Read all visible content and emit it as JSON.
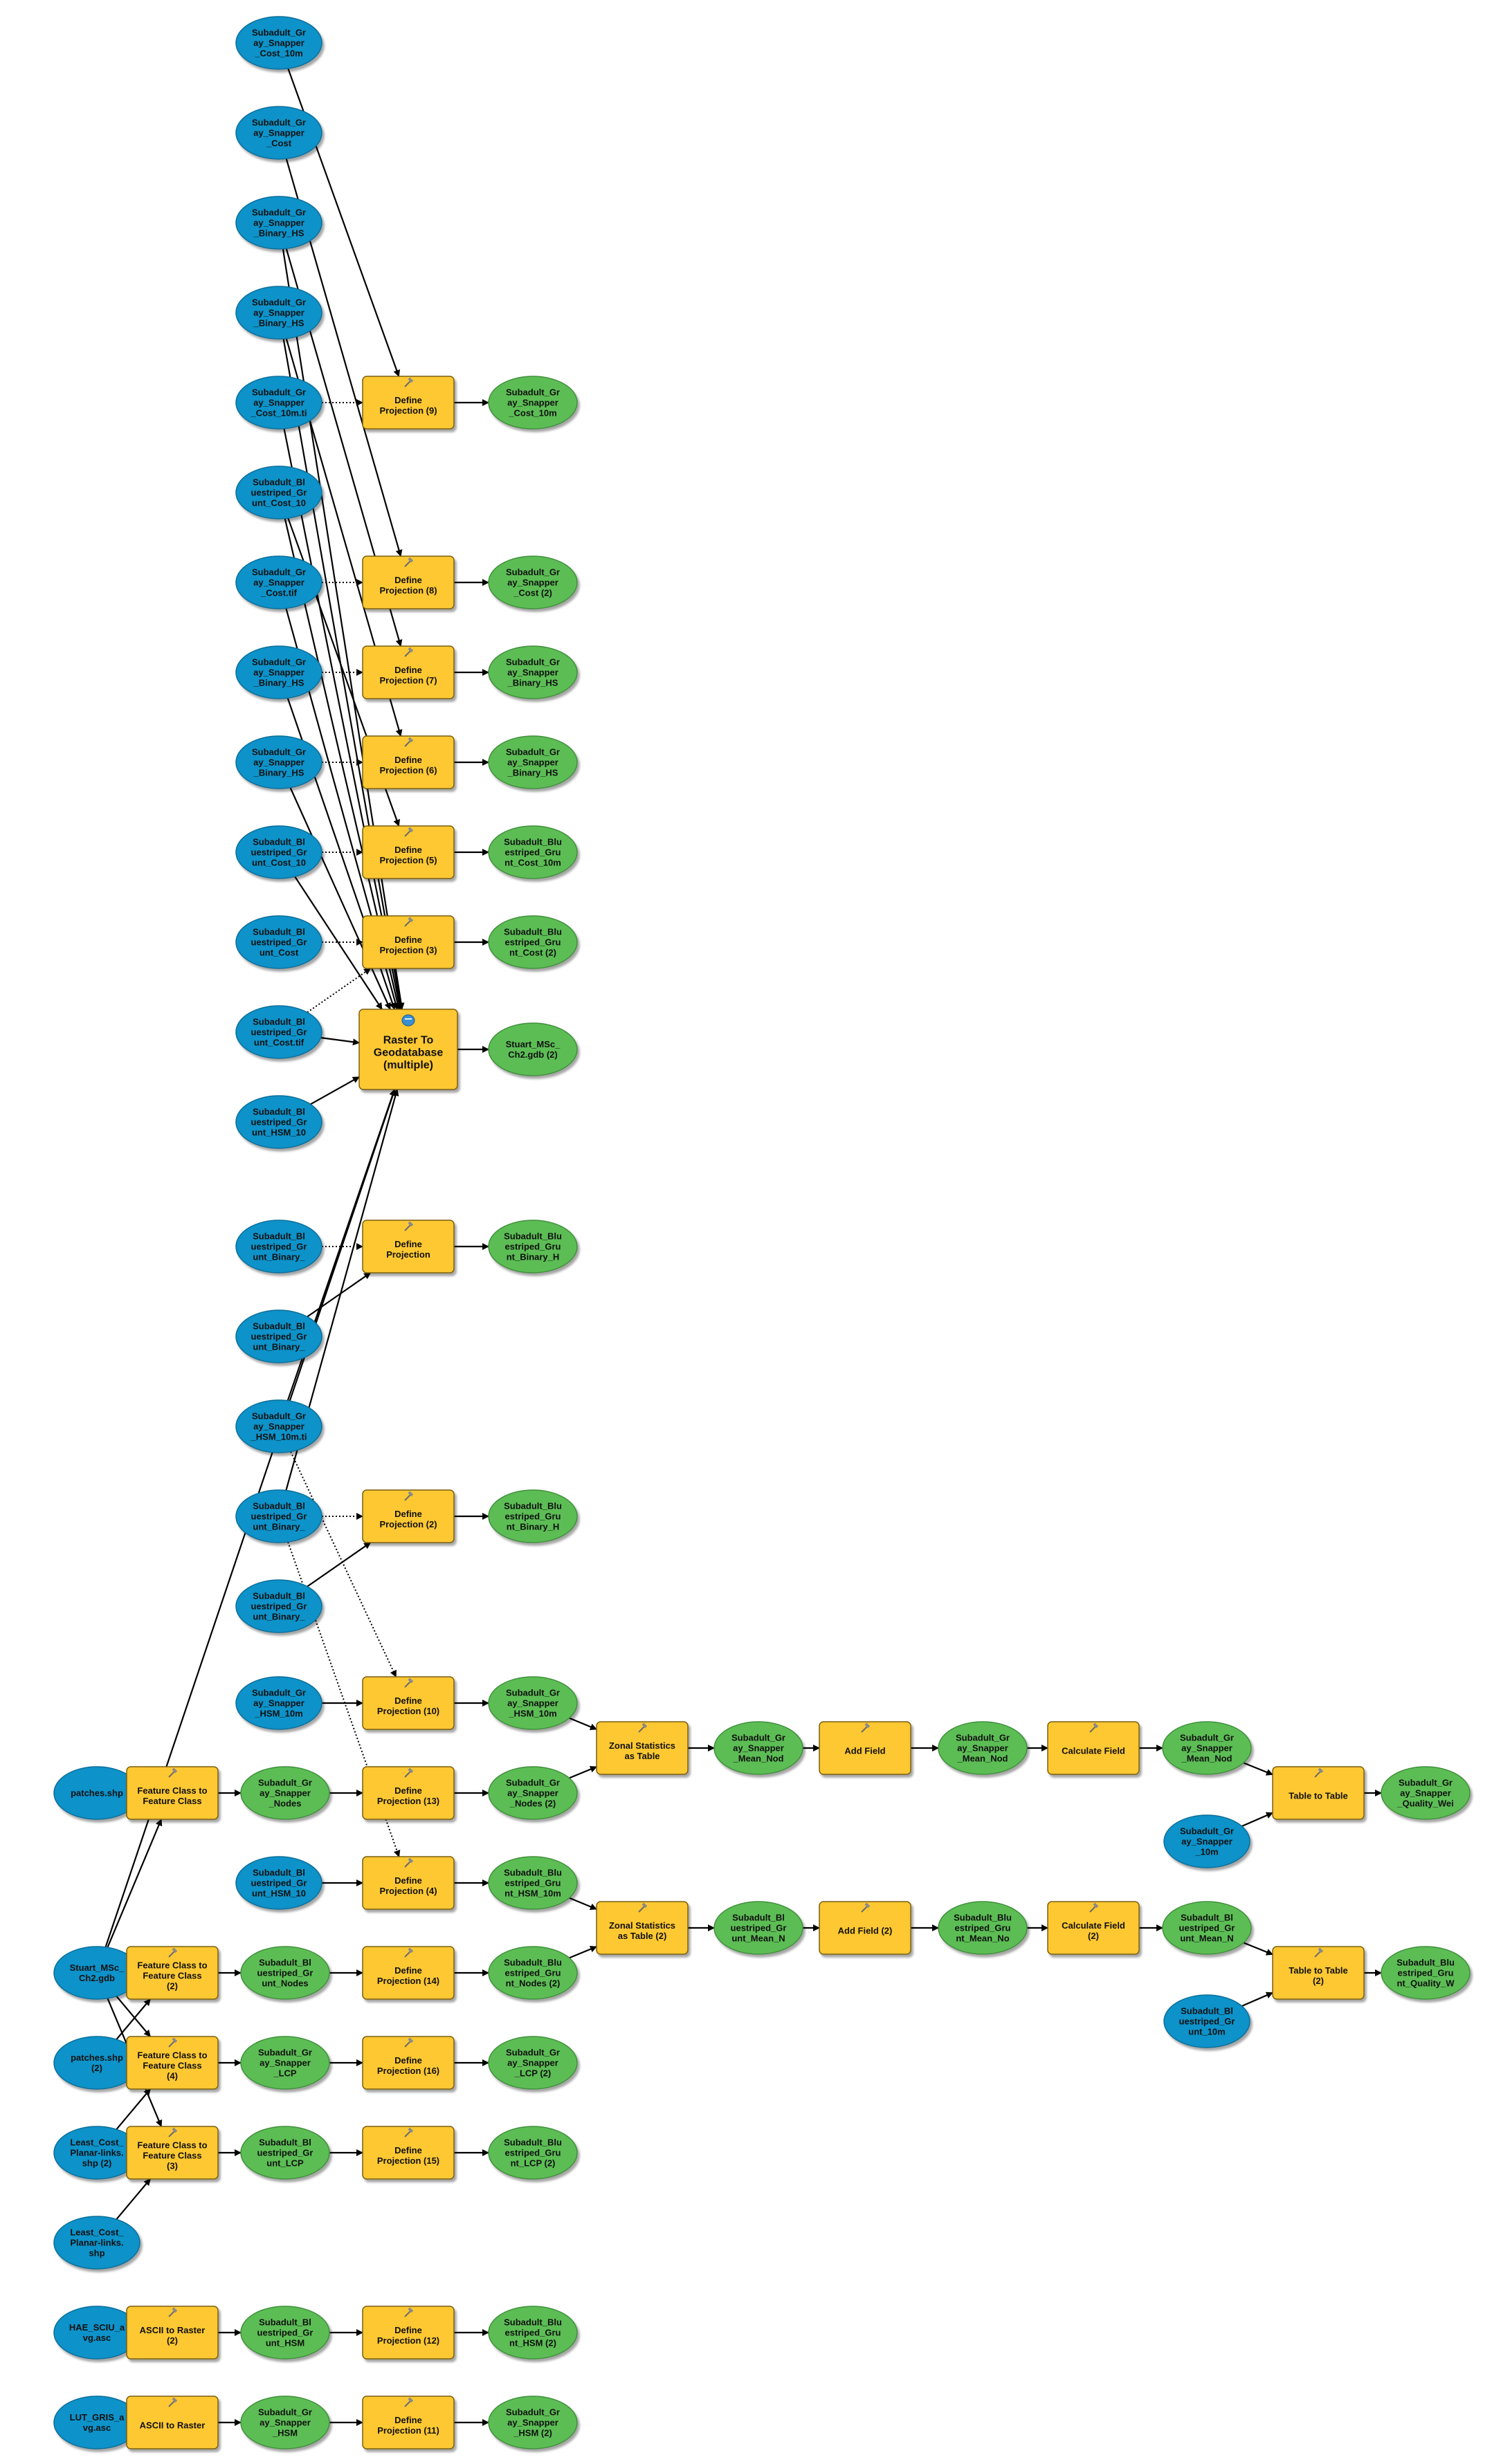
{
  "colors": {
    "data_input": "#1192c9",
    "data_output": "#5cbd55",
    "tool": "#fec830",
    "tool_stroke": "#7a5e10",
    "tool_icon": "hammer-icon",
    "tool_icon_big": "geodatabase-tool-icon"
  },
  "nodes": [
    {
      "id": "i1",
      "kind": "input",
      "label": "Subadult_Gr\nay_Snapper\n_Cost_10m"
    },
    {
      "id": "i2",
      "kind": "input",
      "label": "Subadult_Gr\nay_Snapper\n_Cost"
    },
    {
      "id": "i3",
      "kind": "input",
      "label": "Subadult_Gr\nay_Snapper\n_Binary_HS"
    },
    {
      "id": "i4",
      "kind": "input",
      "label": "Subadult_Gr\nay_Snapper\n_Binary_HS"
    },
    {
      "id": "i5",
      "kind": "input",
      "label": "Subadult_Gr\nay_Snapper\n_Cost_10m.ti"
    },
    {
      "id": "i6",
      "kind": "input",
      "label": "Subadult_Bl\nuestriped_Gr\nunt_Cost_10"
    },
    {
      "id": "i7",
      "kind": "input",
      "label": "Subadult_Gr\nay_Snapper\n_Cost.tif"
    },
    {
      "id": "i8",
      "kind": "input",
      "label": "Subadult_Gr\nay_Snapper\n_Binary_HS"
    },
    {
      "id": "i9",
      "kind": "input",
      "label": "Subadult_Gr\nay_Snapper\n_Binary_HS"
    },
    {
      "id": "i10",
      "kind": "input",
      "label": "Subadult_Bl\nuestriped_Gr\nunt_Cost_10"
    },
    {
      "id": "i11",
      "kind": "input",
      "label": "Subadult_Bl\nuestriped_Gr\nunt_Cost"
    },
    {
      "id": "i12",
      "kind": "input",
      "label": "Subadult_Bl\nuestriped_Gr\nunt_Cost.tif"
    },
    {
      "id": "i13",
      "kind": "input",
      "label": "Subadult_Bl\nuestriped_Gr\nunt_HSM_10"
    },
    {
      "id": "i14",
      "kind": "input",
      "label": "Subadult_Bl\nuestriped_Gr\nunt_Binary_"
    },
    {
      "id": "i15",
      "kind": "input",
      "label": "Subadult_Bl\nuestriped_Gr\nunt_Binary_"
    },
    {
      "id": "i16",
      "kind": "input",
      "label": "Subadult_Gr\nay_Snapper\n_HSM_10m.ti"
    },
    {
      "id": "i17",
      "kind": "input",
      "label": "Subadult_Bl\nuestriped_Gr\nunt_Binary_"
    },
    {
      "id": "i18",
      "kind": "input",
      "label": "Subadult_Bl\nuestriped_Gr\nunt_Binary_"
    },
    {
      "id": "i19",
      "kind": "input",
      "label": "Subadult_Gr\nay_Snapper\n_HSM_10m"
    },
    {
      "id": "i20",
      "kind": "input",
      "label": "patches.shp"
    },
    {
      "id": "i21",
      "kind": "input",
      "label": "Subadult_Bl\nuestriped_Gr\nunt_HSM_10"
    },
    {
      "id": "i22",
      "kind": "input",
      "label": "Stuart_MSc_\nCh2.gdb"
    },
    {
      "id": "i23",
      "kind": "input",
      "label": "patches.shp\n(2)"
    },
    {
      "id": "i24",
      "kind": "input",
      "label": "Least_Cost_\nPlanar-links.\nshp (2)"
    },
    {
      "id": "i25",
      "kind": "input",
      "label": "Least_Cost_\nPlanar-links.\nshp"
    },
    {
      "id": "i26",
      "kind": "input",
      "label": "HAE_SCIU_a\nvg.asc"
    },
    {
      "id": "i27",
      "kind": "input",
      "label": "LUT_GRIS_a\nvg.asc"
    },
    {
      "id": "i28",
      "kind": "input",
      "label": "Subadult_Gr\nay_Snapper\n_10m"
    },
    {
      "id": "i29",
      "kind": "input",
      "label": "Subadult_Bl\nuestriped_Gr\nunt_10m"
    },
    {
      "id": "t9",
      "kind": "tool",
      "label": "Define\nProjection (9)"
    },
    {
      "id": "t8",
      "kind": "tool",
      "label": "Define\nProjection (8)"
    },
    {
      "id": "t7",
      "kind": "tool",
      "label": "Define\nProjection (7)"
    },
    {
      "id": "t6",
      "kind": "tool",
      "label": "Define\nProjection (6)"
    },
    {
      "id": "t5",
      "kind": "tool",
      "label": "Define\nProjection (5)"
    },
    {
      "id": "t3",
      "kind": "tool",
      "label": "Define\nProjection (3)"
    },
    {
      "id": "tR",
      "kind": "tool-big",
      "label": "Raster To\nGeodatabase\n(multiple)"
    },
    {
      "id": "tDP",
      "kind": "tool",
      "label": "Define\nProjection"
    },
    {
      "id": "t2",
      "kind": "tool",
      "label": "Define\nProjection (2)"
    },
    {
      "id": "t10",
      "kind": "tool",
      "label": "Define\nProjection (10)"
    },
    {
      "id": "tFC",
      "kind": "tool",
      "label": "Feature Class to\nFeature Class"
    },
    {
      "id": "t13",
      "kind": "tool",
      "label": "Define\nProjection (13)"
    },
    {
      "id": "tZS",
      "kind": "tool",
      "label": "Zonal Statistics\nas Table"
    },
    {
      "id": "tAF",
      "kind": "tool",
      "label": "Add Field"
    },
    {
      "id": "tCF",
      "kind": "tool",
      "label": "Calculate Field"
    },
    {
      "id": "tTT",
      "kind": "tool",
      "label": "Table to Table"
    },
    {
      "id": "t4",
      "kind": "tool",
      "label": "Define\nProjection (4)"
    },
    {
      "id": "tZS2",
      "kind": "tool",
      "label": "Zonal Statistics\nas Table (2)"
    },
    {
      "id": "tAF2",
      "kind": "tool",
      "label": "Add Field (2)"
    },
    {
      "id": "tCF2",
      "kind": "tool",
      "label": "Calculate Field\n(2)"
    },
    {
      "id": "tTT2",
      "kind": "tool",
      "label": "Table to Table\n(2)"
    },
    {
      "id": "tFC2",
      "kind": "tool",
      "label": "Feature Class to\nFeature Class\n(2)"
    },
    {
      "id": "t14",
      "kind": "tool",
      "label": "Define\nProjection (14)"
    },
    {
      "id": "tFC4",
      "kind": "tool",
      "label": "Feature Class to\nFeature Class\n(4)"
    },
    {
      "id": "t16",
      "kind": "tool",
      "label": "Define\nProjection (16)"
    },
    {
      "id": "tFC3",
      "kind": "tool",
      "label": "Feature Class to\nFeature Class\n(3)"
    },
    {
      "id": "t15",
      "kind": "tool",
      "label": "Define\nProjection (15)"
    },
    {
      "id": "tA2",
      "kind": "tool",
      "label": "ASCII to Raster\n(2)"
    },
    {
      "id": "t12",
      "kind": "tool",
      "label": "Define\nProjection (12)"
    },
    {
      "id": "tA",
      "kind": "tool",
      "label": "ASCII to Raster"
    },
    {
      "id": "t11",
      "kind": "tool",
      "label": "Define\nProjection (11)"
    },
    {
      "id": "o9",
      "kind": "output",
      "label": "Subadult_Gr\nay_Snapper\n_Cost_10m"
    },
    {
      "id": "o8",
      "kind": "output",
      "label": "Subadult_Gr\nay_Snapper\n_Cost (2)"
    },
    {
      "id": "o7",
      "kind": "output",
      "label": "Subadult_Gr\nay_Snapper\n_Binary_HS"
    },
    {
      "id": "o6",
      "kind": "output",
      "label": "Subadult_Gr\nay_Snapper\n_Binary_HS"
    },
    {
      "id": "o5",
      "kind": "output",
      "label": "Subadult_Blu\nestriped_Gru\nnt_Cost_10m"
    },
    {
      "id": "o3",
      "kind": "output",
      "label": "Subadult_Blu\nestriped_Gru\nnt_Cost (2)"
    },
    {
      "id": "oR",
      "kind": "output",
      "label": "Stuart_MSc_\nCh2.gdb (2)"
    },
    {
      "id": "oDP",
      "kind": "output",
      "label": "Subadult_Blu\nestriped_Gru\nnt_Binary_H"
    },
    {
      "id": "o2",
      "kind": "output",
      "label": "Subadult_Blu\nestriped_Gru\nnt_Binary_H"
    },
    {
      "id": "o10",
      "kind": "output",
      "label": "Subadult_Gr\nay_Snapper\n_HSM_10m"
    },
    {
      "id": "oFC",
      "kind": "output",
      "label": "Subadult_Gr\nay_Snapper\n_Nodes"
    },
    {
      "id": "o13",
      "kind": "output",
      "label": "Subadult_Gr\nay_Snapper\n_Nodes (2)"
    },
    {
      "id": "oZS",
      "kind": "output",
      "label": "Subadult_Gr\nay_Snapper\n_Mean_Nod"
    },
    {
      "id": "oAF",
      "kind": "output",
      "label": "Subadult_Gr\nay_Snapper\n_Mean_Nod"
    },
    {
      "id": "oCF",
      "kind": "output",
      "label": "Subadult_Gr\nay_Snapper\n_Mean_Nod"
    },
    {
      "id": "oTT",
      "kind": "output",
      "label": "Subadult_Gr\nay_Snapper\n_Quality_Wei"
    },
    {
      "id": "o4",
      "kind": "output",
      "label": "Subadult_Blu\nestriped_Gru\nnt_HSM_10m"
    },
    {
      "id": "oZS2",
      "kind": "output",
      "label": "Subadult_Bl\nuestriped_Gr\nunt_Mean_N"
    },
    {
      "id": "oAF2",
      "kind": "output",
      "label": "Subadult_Blu\nestriped_Gru\nnt_Mean_No"
    },
    {
      "id": "oCF2",
      "kind": "output",
      "label": "Subadult_Bl\nuestriped_Gr\nunt_Mean_N"
    },
    {
      "id": "oTT2",
      "kind": "output",
      "label": "Subadult_Blu\nestriped_Gru\nnt_Quality_W"
    },
    {
      "id": "oFC2",
      "kind": "output",
      "label": "Subadult_Bl\nuestriped_Gr\nunt_Nodes"
    },
    {
      "id": "o14",
      "kind": "output",
      "label": "Subadult_Blu\nestriped_Gru\nnt_Nodes (2)"
    },
    {
      "id": "oFC4",
      "kind": "output",
      "label": "Subadult_Gr\nay_Snapper\n_LCP"
    },
    {
      "id": "o16",
      "kind": "output",
      "label": "Subadult_Gr\nay_Snapper\n_LCP (2)"
    },
    {
      "id": "oFC3",
      "kind": "output",
      "label": "Subadult_Bl\nuestriped_Gr\nunt_LCP"
    },
    {
      "id": "o15",
      "kind": "output",
      "label": "Subadult_Blu\nestriped_Gru\nnt_LCP (2)"
    },
    {
      "id": "oA2",
      "kind": "output",
      "label": "Subadult_Bl\nuestriped_Gr\nunt_HSM"
    },
    {
      "id": "o12",
      "kind": "output",
      "label": "Subadult_Blu\nestriped_Gru\nnt_HSM (2)"
    },
    {
      "id": "oA",
      "kind": "output",
      "label": "Subadult_Gr\nay_Snapper\n_HSM"
    },
    {
      "id": "o11",
      "kind": "output",
      "label": "Subadult_Gr\nay_Snapper\n_HSM (2)"
    }
  ],
  "edges": [
    {
      "from": "i1",
      "to": "t9"
    },
    {
      "from": "i5",
      "to": "t9",
      "style": "dotted"
    },
    {
      "from": "t9",
      "to": "o9"
    },
    {
      "from": "i2",
      "to": "t8"
    },
    {
      "from": "i7",
      "to": "t8",
      "style": "dotted"
    },
    {
      "from": "t8",
      "to": "o8"
    },
    {
      "from": "i3",
      "to": "t7"
    },
    {
      "from": "i8",
      "to": "t7",
      "style": "dotted"
    },
    {
      "from": "t7",
      "to": "o7"
    },
    {
      "from": "i4",
      "to": "t6"
    },
    {
      "from": "i9",
      "to": "t6",
      "style": "dotted"
    },
    {
      "from": "t6",
      "to": "o6"
    },
    {
      "from": "i6",
      "to": "t5"
    },
    {
      "from": "i10",
      "to": "t5",
      "style": "dotted"
    },
    {
      "from": "t5",
      "to": "o5"
    },
    {
      "from": "i11",
      "to": "t3",
      "style": "dotted"
    },
    {
      "from": "t3",
      "to": "o3"
    },
    {
      "from": "i12",
      "to": "t3",
      "style": "dotted"
    },
    {
      "from": "i5",
      "to": "tR"
    },
    {
      "from": "i7",
      "to": "tR"
    },
    {
      "from": "i8",
      "to": "tR"
    },
    {
      "from": "i9",
      "to": "tR"
    },
    {
      "from": "i10",
      "to": "tR"
    },
    {
      "from": "i12",
      "to": "tR"
    },
    {
      "from": "i13",
      "to": "tR"
    },
    {
      "from": "i16",
      "to": "tR"
    },
    {
      "from": "i17",
      "to": "tR"
    },
    {
      "from": "i3",
      "to": "tR"
    },
    {
      "from": "i4",
      "to": "tR"
    },
    {
      "from": "i6",
      "to": "tR"
    },
    {
      "from": "i22",
      "to": "tR"
    },
    {
      "from": "tR",
      "to": "oR"
    },
    {
      "from": "i14",
      "to": "tDP",
      "style": "dotted"
    },
    {
      "from": "i15",
      "to": "tDP"
    },
    {
      "from": "tDP",
      "to": "oDP"
    },
    {
      "from": "i17",
      "to": "t2",
      "style": "dotted"
    },
    {
      "from": "i18",
      "to": "t2"
    },
    {
      "from": "t2",
      "to": "o2"
    },
    {
      "from": "i16",
      "to": "t10",
      "style": "dotted"
    },
    {
      "from": "i19",
      "to": "t10"
    },
    {
      "from": "t10",
      "to": "o10"
    },
    {
      "from": "i20",
      "to": "tFC"
    },
    {
      "from": "i22",
      "to": "tFC"
    },
    {
      "from": "tFC",
      "to": "oFC"
    },
    {
      "from": "oFC",
      "to": "t13"
    },
    {
      "from": "t13",
      "to": "o13"
    },
    {
      "from": "o10",
      "to": "tZS"
    },
    {
      "from": "o13",
      "to": "tZS"
    },
    {
      "from": "tZS",
      "to": "oZS"
    },
    {
      "from": "oZS",
      "to": "tAF"
    },
    {
      "from": "tAF",
      "to": "oAF"
    },
    {
      "from": "oAF",
      "to": "tCF"
    },
    {
      "from": "tCF",
      "to": "oCF"
    },
    {
      "from": "oCF",
      "to": "tTT"
    },
    {
      "from": "i28",
      "to": "tTT"
    },
    {
      "from": "tTT",
      "to": "oTT"
    },
    {
      "from": "i21",
      "to": "t4"
    },
    {
      "from": "i17",
      "to": "t4",
      "style": "dotted"
    },
    {
      "from": "t4",
      "to": "o4"
    },
    {
      "from": "o4",
      "to": "tZS2"
    },
    {
      "from": "o14",
      "to": "tZS2"
    },
    {
      "from": "tZS2",
      "to": "oZS2"
    },
    {
      "from": "oZS2",
      "to": "tAF2"
    },
    {
      "from": "tAF2",
      "to": "oAF2"
    },
    {
      "from": "oAF2",
      "to": "tCF2"
    },
    {
      "from": "tCF2",
      "to": "oCF2"
    },
    {
      "from": "oCF2",
      "to": "tTT2"
    },
    {
      "from": "i29",
      "to": "tTT2"
    },
    {
      "from": "tTT2",
      "to": "oTT2"
    },
    {
      "from": "i22",
      "to": "tFC2"
    },
    {
      "from": "i23",
      "to": "tFC2"
    },
    {
      "from": "tFC2",
      "to": "oFC2"
    },
    {
      "from": "oFC2",
      "to": "t14"
    },
    {
      "from": "t14",
      "to": "o14"
    },
    {
      "from": "i22",
      "to": "tFC4"
    },
    {
      "from": "i24",
      "to": "tFC4"
    },
    {
      "from": "tFC4",
      "to": "oFC4"
    },
    {
      "from": "oFC4",
      "to": "t16"
    },
    {
      "from": "t16",
      "to": "o16"
    },
    {
      "from": "i22",
      "to": "tFC3"
    },
    {
      "from": "i25",
      "to": "tFC3"
    },
    {
      "from": "tFC3",
      "to": "oFC3"
    },
    {
      "from": "oFC3",
      "to": "t15"
    },
    {
      "from": "t15",
      "to": "o15"
    },
    {
      "from": "i26",
      "to": "tA2"
    },
    {
      "from": "tA2",
      "to": "oA2"
    },
    {
      "from": "oA2",
      "to": "t12"
    },
    {
      "from": "t12",
      "to": "o12"
    },
    {
      "from": "i27",
      "to": "tA"
    },
    {
      "from": "tA",
      "to": "oA"
    },
    {
      "from": "oA",
      "to": "t11"
    },
    {
      "from": "t11",
      "to": "o11"
    }
  ]
}
